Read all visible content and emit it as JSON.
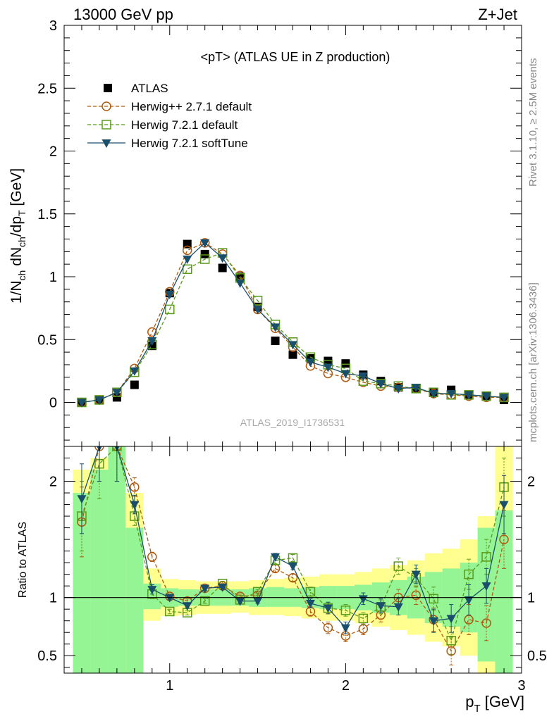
{
  "header": {
    "left": "13000 GeV pp",
    "right": "Z+Jet"
  },
  "side": {
    "rivet": "Rivet 3.1.10, ≥ 2.5M events",
    "mcplots": "mcplots.cern.ch [arXiv:1306.3436]"
  },
  "chart_data": [
    {
      "type": "line",
      "title": "<pT> (ATLAS UE in Z production)",
      "watermark": "ATLAS_2019_I1736531",
      "ylabel": "1/N_ch dN_ch/dp_T [GeV]",
      "xlim": [
        0.4,
        3.0
      ],
      "ylim": [
        -0.35,
        3.0
      ],
      "yticks": [
        "0",
        "0.5",
        "1",
        "1.5",
        "2",
        "2.5",
        "3"
      ],
      "legend_position": "top-left",
      "x": [
        0.5,
        0.6,
        0.7,
        0.8,
        0.9,
        1.0,
        1.1,
        1.2,
        1.3,
        1.4,
        1.5,
        1.6,
        1.7,
        1.8,
        1.9,
        2.0,
        2.1,
        2.2,
        2.3,
        2.4,
        2.5,
        2.6,
        2.7,
        2.8,
        2.9
      ],
      "series": [
        {
          "name": "ATLAS",
          "color": "#000000",
          "marker": "square-filled",
          "values": [
            0.0,
            0.02,
            0.04,
            0.14,
            0.45,
            0.87,
            1.26,
            1.18,
            1.07,
            1.0,
            0.76,
            0.49,
            0.38,
            0.35,
            0.33,
            0.31,
            0.22,
            0.17,
            0.12,
            0.11,
            0.08,
            0.1,
            0.06,
            0.05,
            0.02
          ]
        },
        {
          "name": "Herwig++ 2.7.1 default",
          "color": "#b05a10",
          "marker": "circle-open",
          "dash": true,
          "values": [
            0.0,
            0.02,
            0.08,
            0.27,
            0.56,
            0.88,
            1.21,
            1.27,
            1.18,
            1.01,
            0.74,
            0.59,
            0.44,
            0.29,
            0.23,
            0.2,
            0.16,
            0.13,
            0.12,
            0.11,
            0.07,
            0.06,
            0.05,
            0.04,
            0.04
          ]
        },
        {
          "name": "Herwig 7.2.1 default",
          "color": "#5a9a1a",
          "marker": "square-open",
          "dash": true,
          "values": [
            0.0,
            0.02,
            0.08,
            0.24,
            0.46,
            0.74,
            1.06,
            1.14,
            1.19,
            0.99,
            0.81,
            0.62,
            0.48,
            0.36,
            0.3,
            0.27,
            0.17,
            0.15,
            0.13,
            0.11,
            0.08,
            0.06,
            0.06,
            0.05,
            0.04
          ]
        },
        {
          "name": "Herwig 7.2.1 softTune",
          "color": "#1a4f6b",
          "marker": "triangle-down-filled",
          "dash": false,
          "values": [
            0.0,
            0.02,
            0.08,
            0.25,
            0.49,
            0.86,
            1.14,
            1.27,
            1.15,
            0.95,
            0.74,
            0.6,
            0.46,
            0.32,
            0.28,
            0.23,
            0.21,
            0.15,
            0.11,
            0.12,
            0.07,
            0.07,
            0.06,
            0.05,
            0.04
          ]
        }
      ]
    },
    {
      "type": "line",
      "ylabel": "Ratio to ATLAS",
      "xlabel": "p_T [GeV]",
      "xlim": [
        0.4,
        3.0
      ],
      "ylim": [
        0.35,
        2.3
      ],
      "xticks": [
        "1",
        "2",
        "3"
      ],
      "yticks": [
        "0.5",
        "1",
        "2"
      ],
      "x": [
        0.5,
        0.6,
        0.7,
        0.8,
        0.9,
        1.0,
        1.1,
        1.2,
        1.3,
        1.4,
        1.5,
        1.6,
        1.7,
        1.8,
        1.9,
        2.0,
        2.1,
        2.2,
        2.3,
        2.4,
        2.5,
        2.6,
        2.7,
        2.8,
        2.9
      ],
      "band_green": [
        [
          0.35,
          1.9
        ],
        [
          0.35,
          2.1
        ],
        [
          0.35,
          2.3
        ],
        [
          0.35,
          1.6
        ],
        [
          0.9,
          1.12
        ],
        [
          0.92,
          1.08
        ],
        [
          0.93,
          1.07
        ],
        [
          0.93,
          1.07
        ],
        [
          0.93,
          1.07
        ],
        [
          0.93,
          1.07
        ],
        [
          0.92,
          1.08
        ],
        [
          0.92,
          1.09
        ],
        [
          0.92,
          1.08
        ],
        [
          0.91,
          1.09
        ],
        [
          0.9,
          1.1
        ],
        [
          0.9,
          1.1
        ],
        [
          0.89,
          1.11
        ],
        [
          0.87,
          1.13
        ],
        [
          0.85,
          1.15
        ],
        [
          0.82,
          1.18
        ],
        [
          0.78,
          1.22
        ],
        [
          0.75,
          1.25
        ],
        [
          0.7,
          1.3
        ],
        [
          0.45,
          1.6
        ],
        [
          0.35,
          1.75
        ]
      ],
      "band_yellow": [
        [
          0.35,
          2.1
        ],
        [
          0.35,
          2.2
        ],
        [
          0.35,
          2.3
        ],
        [
          0.35,
          1.9
        ],
        [
          0.8,
          1.25
        ],
        [
          0.84,
          1.16
        ],
        [
          0.85,
          1.15
        ],
        [
          0.86,
          1.14
        ],
        [
          0.86,
          1.14
        ],
        [
          0.87,
          1.14
        ],
        [
          0.85,
          1.15
        ],
        [
          0.85,
          1.16
        ],
        [
          0.84,
          1.17
        ],
        [
          0.82,
          1.18
        ],
        [
          0.8,
          1.2
        ],
        [
          0.8,
          1.2
        ],
        [
          0.78,
          1.22
        ],
        [
          0.75,
          1.25
        ],
        [
          0.72,
          1.28
        ],
        [
          0.68,
          1.32
        ],
        [
          0.62,
          1.38
        ],
        [
          0.58,
          1.42
        ],
        [
          0.5,
          1.5
        ],
        [
          0.35,
          1.7
        ],
        [
          0.35,
          2.3
        ]
      ],
      "series": [
        {
          "name": "Herwig++ 2.7.1 default",
          "values": [
            1.65,
            2.3,
            2.3,
            1.95,
            1.35,
            1.01,
            0.97,
            1.08,
            1.1,
            1.01,
            1.02,
            1.25,
            1.17,
            0.88,
            0.74,
            0.67,
            0.73,
            0.85,
            1.0,
            1.02,
            0.81,
            0.54,
            0.81,
            0.78,
            1.5
          ],
          "err": [
            0.3,
            0.3,
            0.3,
            0.08,
            0.04,
            0.02,
            0.02,
            0.02,
            0.02,
            0.02,
            0.02,
            0.03,
            0.03,
            0.04,
            0.05,
            0.05,
            0.05,
            0.06,
            0.07,
            0.08,
            0.1,
            0.12,
            0.13,
            0.15,
            0.25
          ]
        },
        {
          "name": "Herwig 7.2.1 default",
          "values": [
            1.7,
            2.15,
            2.3,
            1.7,
            1.03,
            0.88,
            0.87,
            0.97,
            1.12,
            0.98,
            1.05,
            1.32,
            1.34,
            1.05,
            0.91,
            0.89,
            0.82,
            0.92,
            1.27,
            1.17,
            0.99,
            0.63,
            1.2,
            1.35,
            1.95
          ],
          "err": [
            0.3,
            0.3,
            0.3,
            0.08,
            0.04,
            0.02,
            0.02,
            0.02,
            0.02,
            0.02,
            0.02,
            0.03,
            0.03,
            0.04,
            0.05,
            0.05,
            0.05,
            0.06,
            0.07,
            0.08,
            0.1,
            0.12,
            0.13,
            0.15,
            0.25
          ]
        },
        {
          "name": "Herwig 7.2.1 softTune",
          "values": [
            1.85,
            2.3,
            2.3,
            1.8,
            1.07,
            1.0,
            0.93,
            1.08,
            1.09,
            0.97,
            0.97,
            1.35,
            1.27,
            0.95,
            0.91,
            0.74,
            0.99,
            0.93,
            0.92,
            1.2,
            0.8,
            0.82,
            0.98,
            1.1,
            1.8
          ],
          "err": [
            0.3,
            0.3,
            0.3,
            0.08,
            0.04,
            0.02,
            0.02,
            0.02,
            0.02,
            0.02,
            0.02,
            0.03,
            0.03,
            0.04,
            0.05,
            0.05,
            0.05,
            0.06,
            0.07,
            0.08,
            0.1,
            0.12,
            0.13,
            0.15,
            0.25
          ]
        }
      ]
    }
  ]
}
